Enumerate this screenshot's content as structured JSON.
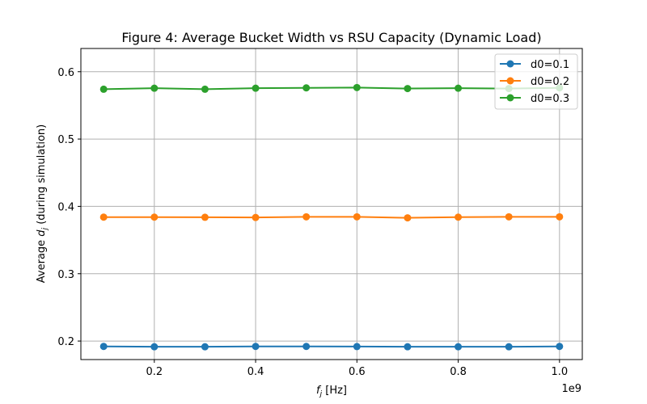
{
  "chart_data": {
    "type": "line",
    "title": "Figure 4: Average Bucket Width vs RSU Capacity (Dynamic Load)",
    "xlabel_prefix": "f",
    "xlabel_sub": "j",
    "xlabel_suffix": " [Hz]",
    "ylabel_prefix": "Average ",
    "ylabel_var": "d",
    "ylabel_sub": "j",
    "ylabel_suffix": " (during simulation)",
    "x_offset_label": "1e9",
    "x": [
      0.1,
      0.2,
      0.3,
      0.4,
      0.5,
      0.6,
      0.7,
      0.8,
      0.9,
      1.0
    ],
    "xlim": [
      0.055,
      1.045
    ],
    "ylim": [
      0.1725,
      0.6345
    ],
    "xticks": [
      0.2,
      0.4,
      0.6,
      0.8,
      1.0
    ],
    "xtick_labels": [
      "0.2",
      "0.4",
      "0.6",
      "0.8",
      "1.0"
    ],
    "yticks": [
      0.2,
      0.3,
      0.4,
      0.5,
      0.6
    ],
    "ytick_labels": [
      "0.2",
      "0.3",
      "0.4",
      "0.5",
      "0.6"
    ],
    "grid": true,
    "legend_position": "top-right",
    "series": [
      {
        "name": "d0=0.1",
        "color": "#1f77b4",
        "values": [
          0.192,
          0.1915,
          0.1915,
          0.192,
          0.192,
          0.1918,
          0.1915,
          0.1915,
          0.1915,
          0.192
        ]
      },
      {
        "name": "d0=0.2",
        "color": "#ff7f0e",
        "values": [
          0.384,
          0.384,
          0.3838,
          0.3835,
          0.3845,
          0.3845,
          0.383,
          0.384,
          0.3845,
          0.3845
        ]
      },
      {
        "name": "d0=0.3",
        "color": "#2ca02c",
        "values": [
          0.574,
          0.5755,
          0.574,
          0.5755,
          0.576,
          0.5765,
          0.575,
          0.5755,
          0.575,
          0.576
        ]
      }
    ]
  }
}
